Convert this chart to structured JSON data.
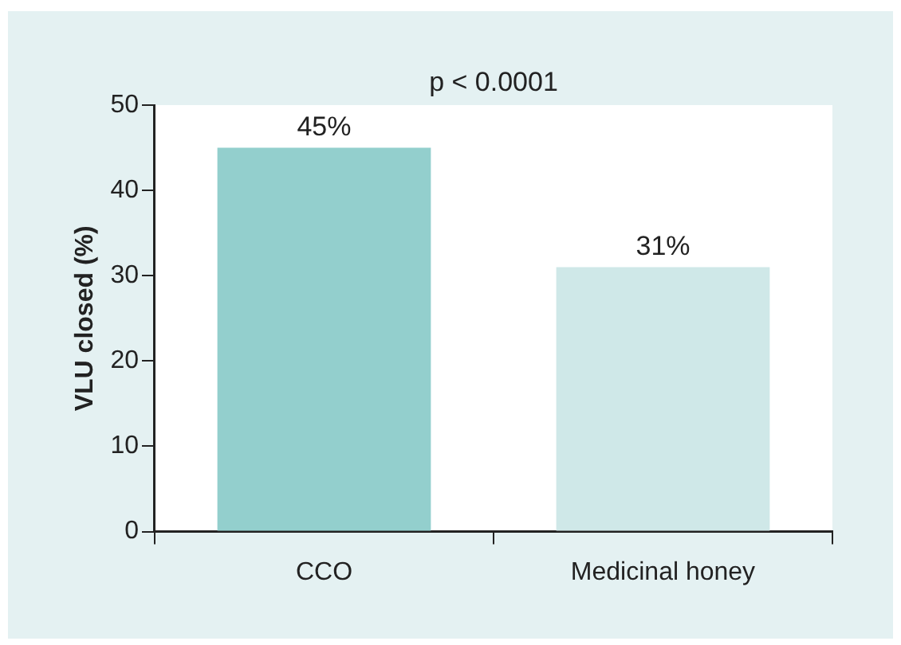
{
  "chart_data": {
    "type": "bar",
    "ylabel": "VLU closed (%)",
    "categories": [
      "CCO",
      "Medicinal honey"
    ],
    "values": [
      45,
      31
    ],
    "colors": [
      "#93cfcd",
      "#cfe8e8"
    ],
    "value_labels": [
      "45%",
      "31%"
    ],
    "ylim": [
      0,
      50
    ],
    "yticks": [
      0,
      10,
      20,
      30,
      40,
      50
    ],
    "grid": false,
    "legend": false,
    "annotations": [
      "p < 0.0001"
    ]
  }
}
